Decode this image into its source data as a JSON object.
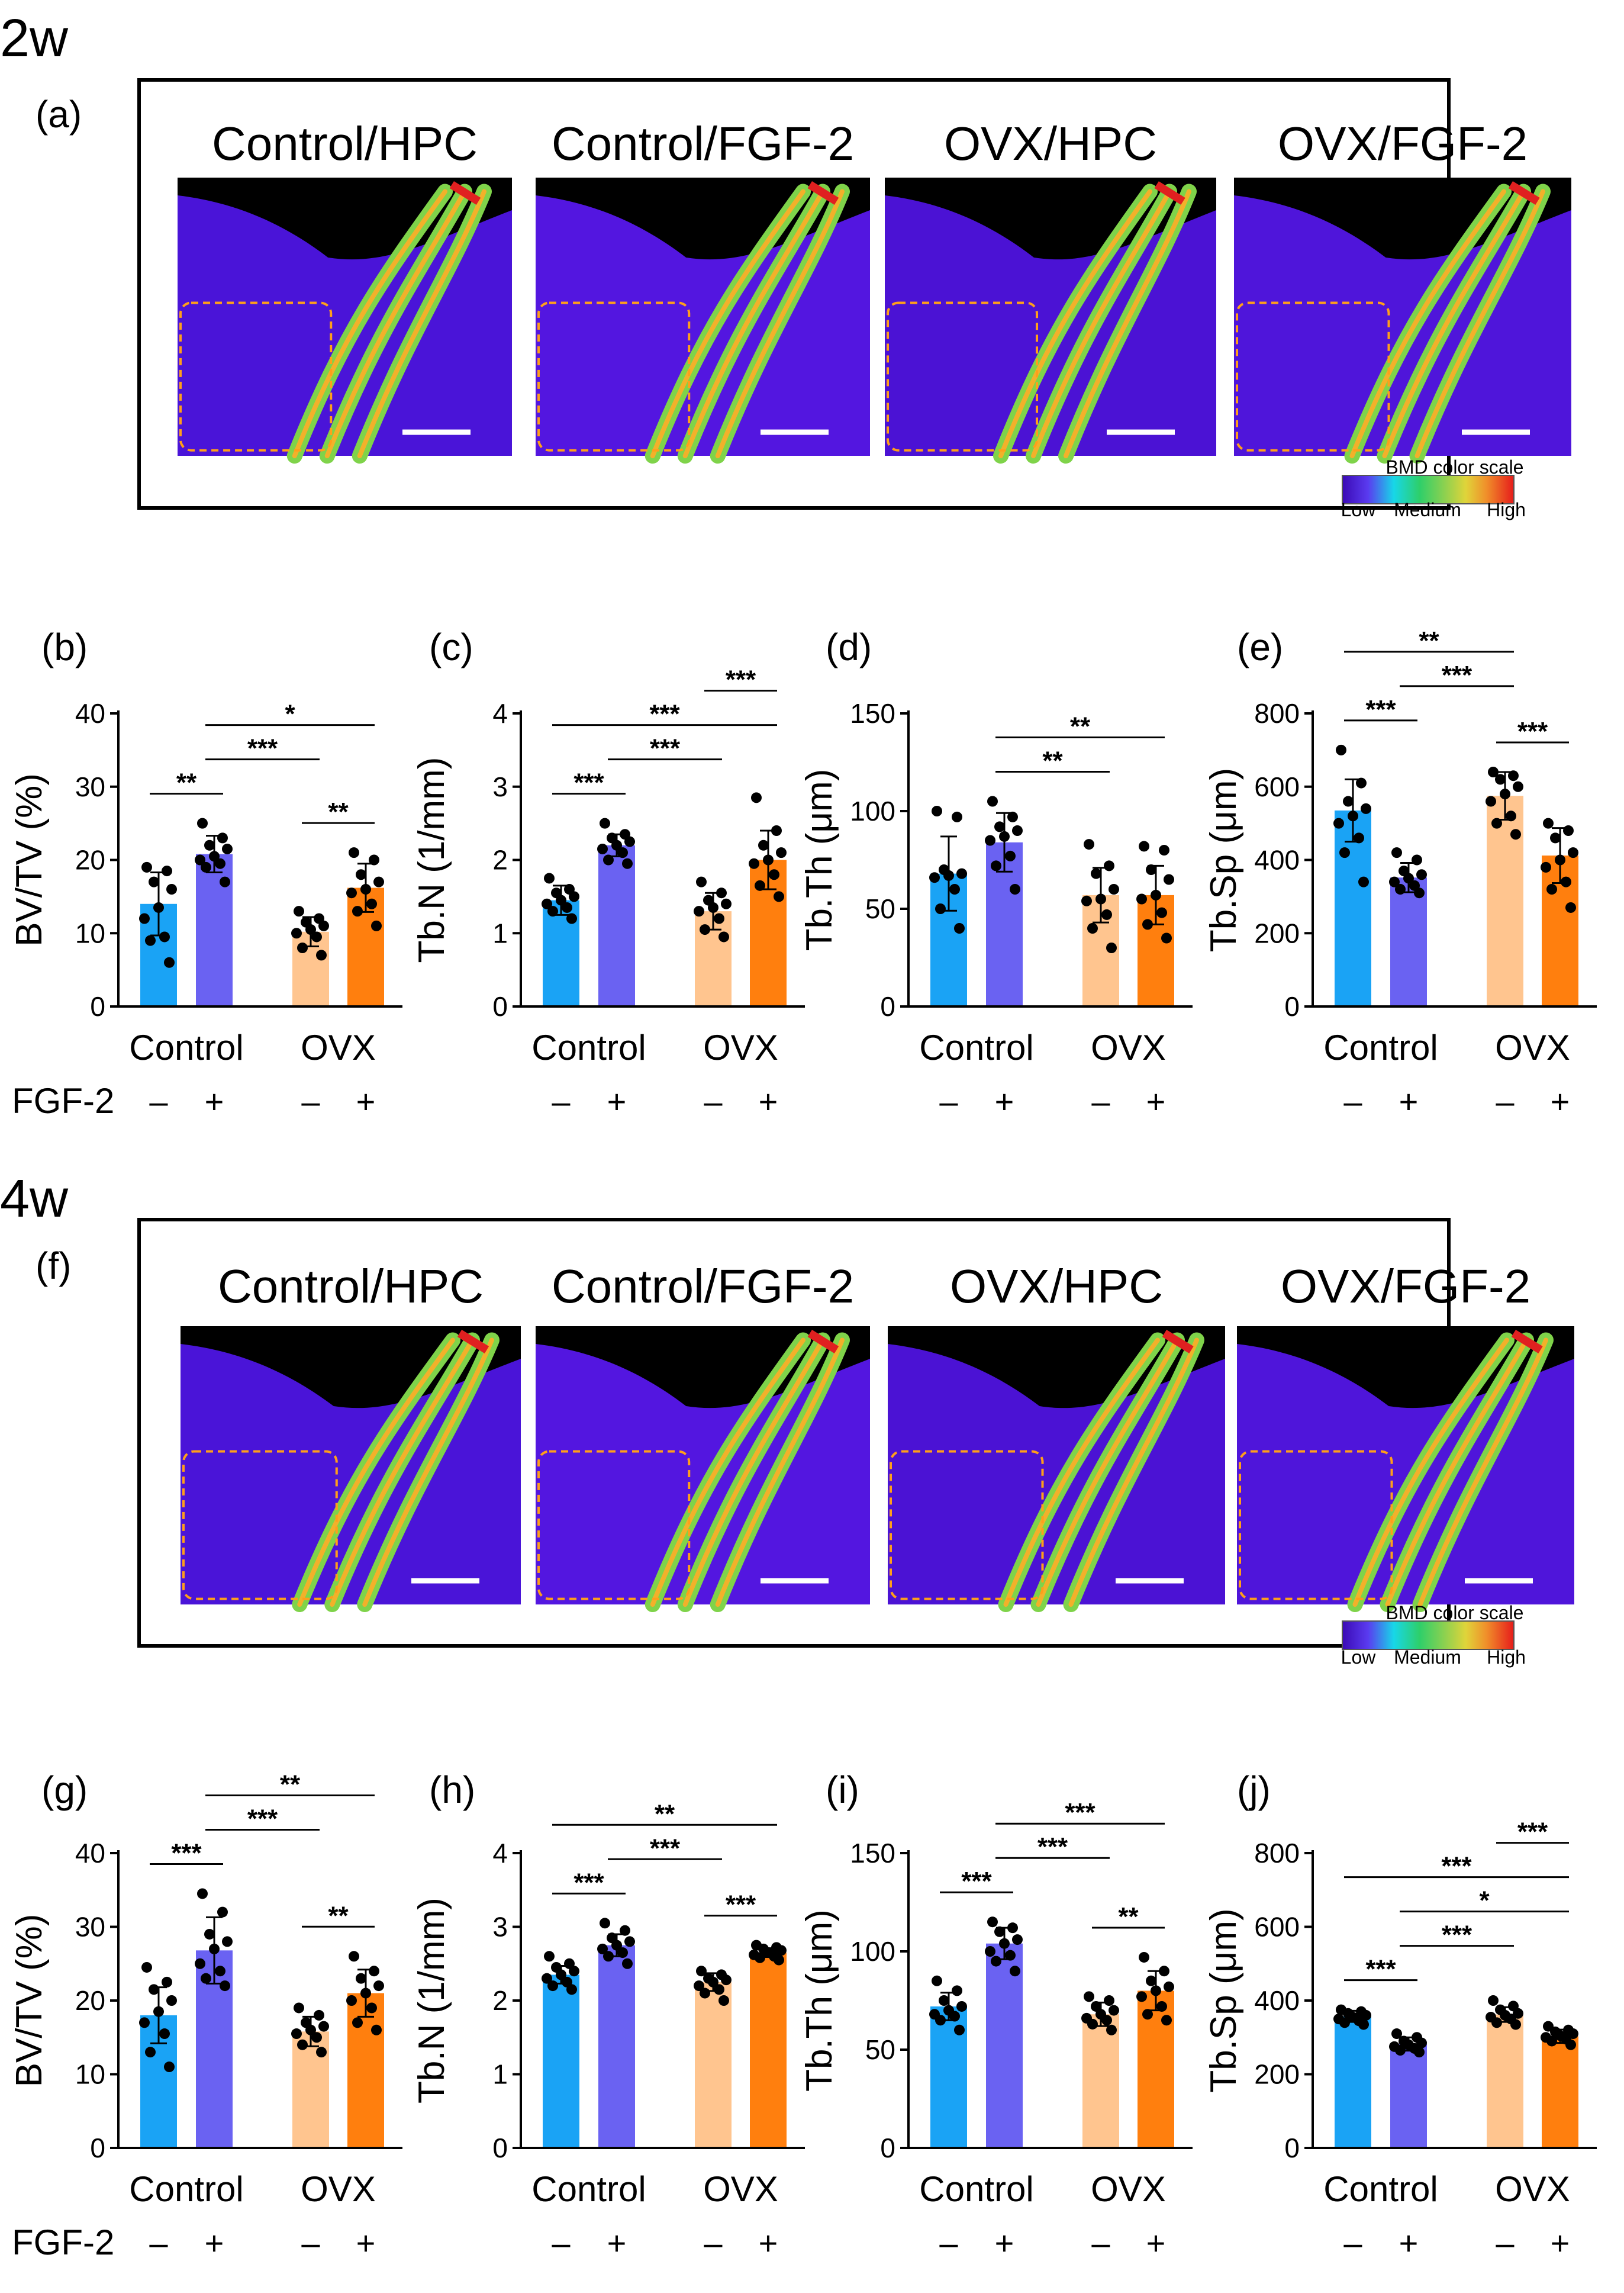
{
  "sections": [
    {
      "time_label": "2w",
      "image_panel_letter": "(a)",
      "image_titles": [
        "Control/HPC",
        "Control/FGF-2",
        "OVX/HPC",
        "OVX/FGF-2"
      ],
      "color_scale_title": "BMD color scale",
      "color_scale_labels": [
        "Low",
        "Medium",
        "High"
      ]
    },
    {
      "time_label": "4w",
      "image_panel_letter": "(f)",
      "image_titles": [
        "Control/HPC",
        "Control/FGF-2",
        "OVX/HPC",
        "OVX/FGF-2"
      ],
      "color_scale_title": "BMD color scale",
      "color_scale_labels": [
        "Low",
        "Medium",
        "High"
      ]
    }
  ],
  "colors": {
    "control_hpc": "#1aa3f5",
    "control_fgf2": "#6a62f2",
    "ovx_hpc": "#ffc58f",
    "ovx_fgf2": "#ff7f0e"
  },
  "chart_data": [
    {
      "panel": "(b)",
      "type": "bar",
      "ylabel": "BV/TV (%)",
      "ylim": [
        0,
        40
      ],
      "yticks": [
        0,
        10,
        20,
        30,
        40
      ],
      "groups": [
        "Control",
        "OVX"
      ],
      "fgf2_label": "FGF-2",
      "signs": [
        "–",
        "+",
        "–",
        "+"
      ],
      "means": [
        14,
        20.8,
        10.2,
        16.2
      ],
      "sd": [
        4.3,
        2.5,
        2.0,
        3.3
      ],
      "points": [
        [
          19,
          18.5,
          17,
          16,
          13.5,
          12,
          9.5,
          9,
          6
        ],
        [
          25,
          23,
          22,
          21.5,
          20.5,
          20,
          19.5,
          19,
          17
        ],
        [
          13,
          12,
          11.5,
          11,
          10.5,
          10,
          9.5,
          8,
          7
        ],
        [
          21,
          20,
          18,
          17,
          16,
          15.5,
          14,
          13,
          11
        ]
      ],
      "significance": [
        {
          "a": 0,
          "b": 1,
          "label": "**"
        },
        {
          "a": 1,
          "b": 2,
          "label": "***"
        },
        {
          "a": 1,
          "b": 3,
          "label": "*"
        },
        {
          "a": 2,
          "b": 3,
          "label": "**"
        }
      ]
    },
    {
      "panel": "(c)",
      "type": "bar",
      "ylabel": "Tb.N (1/mm)",
      "ylim": [
        0,
        4
      ],
      "yticks": [
        0,
        1,
        2,
        3,
        4
      ],
      "groups": [
        "Control",
        "OVX"
      ],
      "fgf2_label": "",
      "signs": [
        "–",
        "+",
        "–",
        "+"
      ],
      "means": [
        1.45,
        2.2,
        1.3,
        2.0
      ],
      "sd": [
        0.2,
        0.15,
        0.25,
        0.4
      ],
      "points": [
        [
          1.75,
          1.6,
          1.55,
          1.5,
          1.45,
          1.4,
          1.35,
          1.3,
          1.2
        ],
        [
          2.5,
          2.35,
          2.3,
          2.25,
          2.2,
          2.15,
          2.1,
          2.0,
          1.95
        ],
        [
          1.7,
          1.55,
          1.45,
          1.4,
          1.35,
          1.3,
          1.2,
          1.05,
          0.95
        ],
        [
          2.85,
          2.4,
          2.2,
          2.1,
          2.0,
          1.95,
          1.8,
          1.65,
          1.5
        ]
      ],
      "significance": [
        {
          "a": 0,
          "b": 1,
          "label": "***"
        },
        {
          "a": 1,
          "b": 2,
          "label": "***"
        },
        {
          "a": 0,
          "b": 3,
          "label": "***"
        },
        {
          "a": 2,
          "b": 3,
          "label": "***"
        }
      ]
    },
    {
      "panel": "(d)",
      "type": "bar",
      "ylabel": "Tb.Th (μm)",
      "ylim": [
        0,
        150
      ],
      "yticks": [
        0,
        50,
        100,
        150
      ],
      "groups": [
        "Control",
        "OVX"
      ],
      "fgf2_label": "",
      "signs": [
        "–",
        "+",
        "–",
        "+"
      ],
      "means": [
        68,
        84,
        57,
        57
      ],
      "sd": [
        19,
        15,
        14,
        15
      ],
      "points": [
        [
          100,
          97,
          70,
          68,
          67,
          66,
          60,
          50,
          40
        ],
        [
          105,
          97,
          92,
          90,
          87,
          85,
          77,
          72,
          60
        ],
        [
          83,
          72,
          68,
          60,
          55,
          54,
          47,
          40,
          30
        ],
        [
          82,
          80,
          70,
          65,
          57,
          55,
          48,
          42,
          35
        ]
      ],
      "significance": [
        {
          "a": 1,
          "b": 2,
          "label": "**"
        },
        {
          "a": 1,
          "b": 3,
          "label": "**"
        }
      ]
    },
    {
      "panel": "(e)",
      "type": "bar",
      "ylabel": "Tb.Sp (μm)",
      "ylim": [
        0,
        800
      ],
      "yticks": [
        0,
        200,
        400,
        600,
        800
      ],
      "groups": [
        "Control",
        "OVX"
      ],
      "fgf2_label": "",
      "signs": [
        "–",
        "+",
        "–",
        "+"
      ],
      "means": [
        535,
        352,
        575,
        412
      ],
      "sd": [
        85,
        40,
        65,
        75
      ],
      "points": [
        [
          700,
          610,
          560,
          540,
          520,
          500,
          460,
          420,
          340
        ],
        [
          420,
          400,
          370,
          360,
          350,
          340,
          330,
          320,
          310
        ],
        [
          640,
          630,
          620,
          600,
          580,
          560,
          520,
          500,
          470
        ],
        [
          500,
          480,
          460,
          420,
          400,
          380,
          340,
          320,
          270
        ]
      ],
      "significance": [
        {
          "a": 0,
          "b": 1,
          "label": "***"
        },
        {
          "a": 1,
          "b": 2,
          "label": "***"
        },
        {
          "a": 0,
          "b": 2,
          "label": "**"
        },
        {
          "a": 2,
          "b": 3,
          "label": "***"
        }
      ]
    },
    {
      "panel": "(g)",
      "type": "bar",
      "ylabel": "BV/TV (%)",
      "ylim": [
        0,
        40
      ],
      "yticks": [
        0,
        10,
        20,
        30,
        40
      ],
      "groups": [
        "Control",
        "OVX"
      ],
      "fgf2_label": "FGF-2",
      "signs": [
        "–",
        "+",
        "–",
        "+"
      ],
      "means": [
        18,
        26.8,
        15.8,
        21
      ],
      "sd": [
        3.8,
        4.5,
        2.0,
        3.2
      ],
      "points": [
        [
          24.5,
          22.5,
          21.5,
          20,
          18.5,
          17,
          15.5,
          13,
          11
        ],
        [
          34.5,
          32,
          29,
          28,
          27,
          25,
          24,
          23,
          22
        ],
        [
          19,
          18,
          17,
          16.5,
          16,
          15.5,
          15,
          14,
          13
        ],
        [
          26,
          24,
          23,
          22,
          21,
          20,
          19,
          17,
          16
        ]
      ],
      "significance": [
        {
          "a": 0,
          "b": 1,
          "label": "***"
        },
        {
          "a": 1,
          "b": 2,
          "label": "***"
        },
        {
          "a": 1,
          "b": 3,
          "label": "**"
        },
        {
          "a": 2,
          "b": 3,
          "label": "**"
        }
      ]
    },
    {
      "panel": "(h)",
      "type": "bar",
      "ylabel": "Tb.N (1/mm)",
      "ylim": [
        0,
        4
      ],
      "yticks": [
        0,
        1,
        2,
        3,
        4
      ],
      "groups": [
        "Control",
        "OVX"
      ],
      "fgf2_label": "",
      "signs": [
        "–",
        "+",
        "–",
        "+"
      ],
      "means": [
        2.35,
        2.75,
        2.25,
        2.65
      ],
      "sd": [
        0.12,
        0.15,
        0.12,
        0.06
      ],
      "points": [
        [
          2.6,
          2.5,
          2.45,
          2.4,
          2.35,
          2.3,
          2.25,
          2.2,
          2.15
        ],
        [
          3.05,
          2.95,
          2.85,
          2.8,
          2.75,
          2.7,
          2.65,
          2.6,
          2.5
        ],
        [
          2.4,
          2.35,
          2.3,
          2.28,
          2.25,
          2.2,
          2.15,
          2.1,
          2.0
        ],
        [
          2.75,
          2.72,
          2.7,
          2.68,
          2.65,
          2.62,
          2.6,
          2.58,
          2.55
        ]
      ],
      "significance": [
        {
          "a": 0,
          "b": 1,
          "label": "***"
        },
        {
          "a": 1,
          "b": 2,
          "label": "***"
        },
        {
          "a": 0,
          "b": 3,
          "label": "**"
        },
        {
          "a": 2,
          "b": 3,
          "label": "***"
        }
      ]
    },
    {
      "panel": "(i)",
      "type": "bar",
      "ylabel": "Tb.Th (μm)",
      "ylim": [
        0,
        150
      ],
      "yticks": [
        0,
        50,
        100,
        150
      ],
      "groups": [
        "Control",
        "OVX"
      ],
      "fgf2_label": "",
      "signs": [
        "–",
        "+",
        "–",
        "+"
      ],
      "means": [
        72,
        104,
        68,
        80
      ],
      "sd": [
        7,
        8,
        6,
        10
      ],
      "points": [
        [
          85,
          80,
          75,
          72,
          70,
          68,
          67,
          65,
          60
        ],
        [
          115,
          112,
          110,
          106,
          104,
          100,
          98,
          95,
          90
        ],
        [
          77,
          75,
          72,
          70,
          68,
          66,
          65,
          63,
          60
        ],
        [
          97,
          90,
          85,
          82,
          80,
          77,
          72,
          68,
          65
        ]
      ],
      "significance": [
        {
          "a": 0,
          "b": 1,
          "label": "***"
        },
        {
          "a": 1,
          "b": 2,
          "label": "***"
        },
        {
          "a": 1,
          "b": 3,
          "label": "***"
        },
        {
          "a": 2,
          "b": 3,
          "label": "**"
        }
      ]
    },
    {
      "panel": "(j)",
      "type": "bar",
      "ylabel": "Tb.Sp (μm)",
      "ylim": [
        0,
        800
      ],
      "yticks": [
        0,
        200,
        400,
        600,
        800
      ],
      "groups": [
        "Control",
        "OVX"
      ],
      "fgf2_label": "",
      "signs": [
        "–",
        "+",
        "–",
        "+"
      ],
      "means": [
        357,
        282,
        362,
        303
      ],
      "sd": [
        15,
        18,
        20,
        18
      ],
      "points": [
        [
          375,
          370,
          365,
          360,
          355,
          350,
          345,
          340,
          335
        ],
        [
          310,
          300,
          290,
          285,
          280,
          275,
          270,
          265,
          260
        ],
        [
          400,
          385,
          375,
          365,
          360,
          355,
          350,
          340,
          335
        ],
        [
          330,
          320,
          315,
          310,
          305,
          300,
          295,
          290,
          280
        ]
      ],
      "significance": [
        {
          "a": 0,
          "b": 1,
          "label": "***"
        },
        {
          "a": 1,
          "b": 2,
          "label": "***"
        },
        {
          "a": 1,
          "b": 3,
          "label": "*"
        },
        {
          "a": 0,
          "b": 3,
          "label": "***"
        },
        {
          "a": 2,
          "b": 3,
          "label": "***"
        }
      ]
    }
  ]
}
